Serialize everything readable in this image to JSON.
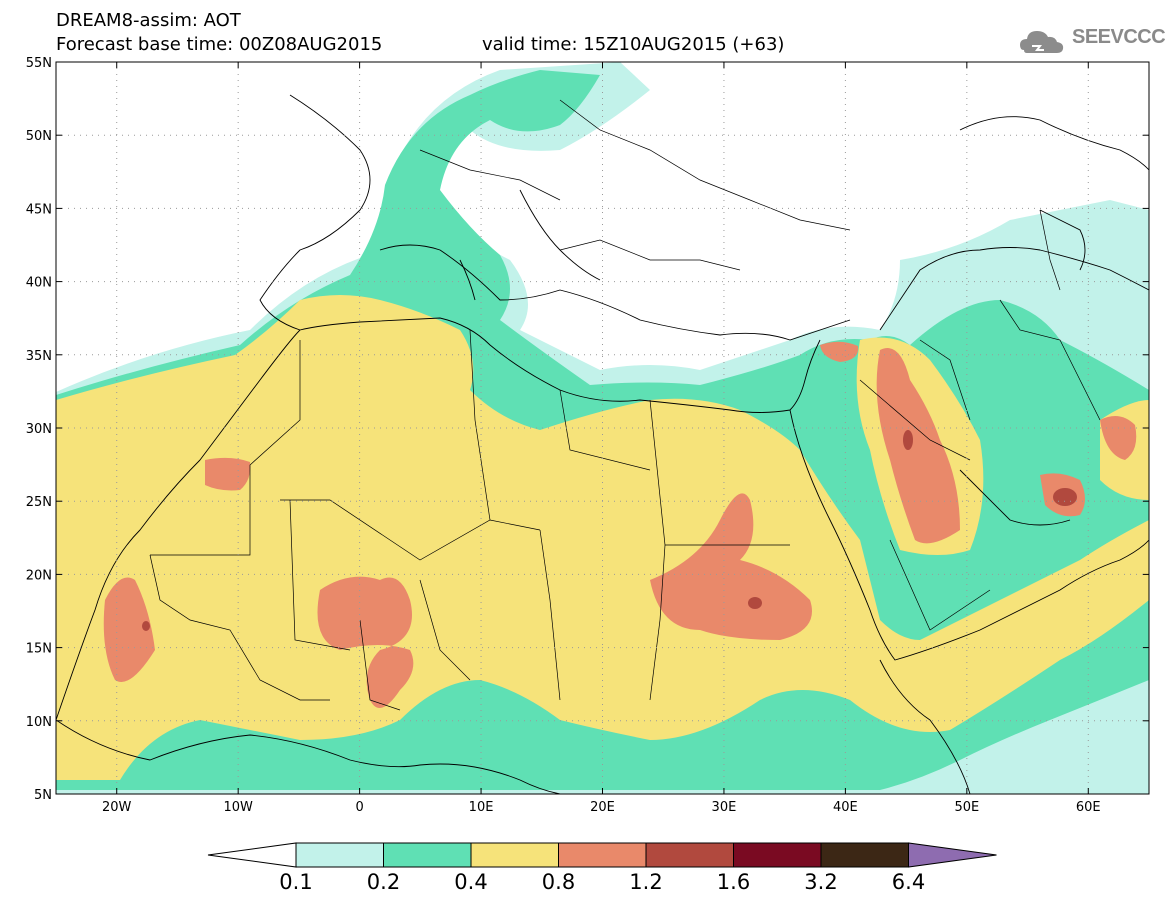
{
  "header": {
    "title_line1": "DREAM8-assim: AOT",
    "title_line2": "Forecast base time: 00Z08AUG2015",
    "valid_time": "valid time: 15Z10AUG2015 (+63)",
    "logo_text": "SEEVCCC"
  },
  "map": {
    "lon_range": [
      -25,
      65
    ],
    "lat_range": [
      5,
      55
    ],
    "x_ticks": [
      {
        "lon": -20,
        "label": "20W"
      },
      {
        "lon": -10,
        "label": "10W"
      },
      {
        "lon": 0,
        "label": "0"
      },
      {
        "lon": 10,
        "label": "10E"
      },
      {
        "lon": 20,
        "label": "20E"
      },
      {
        "lon": 30,
        "label": "30E"
      },
      {
        "lon": 40,
        "label": "40E"
      },
      {
        "lon": 50,
        "label": "50E"
      },
      {
        "lon": 60,
        "label": "60E"
      }
    ],
    "y_ticks": [
      {
        "lat": 55,
        "label": "55N"
      },
      {
        "lat": 50,
        "label": "50N"
      },
      {
        "lat": 45,
        "label": "45N"
      },
      {
        "lat": 40,
        "label": "40N"
      },
      {
        "lat": 35,
        "label": "35N"
      },
      {
        "lat": 30,
        "label": "30N"
      },
      {
        "lat": 25,
        "label": "25N"
      },
      {
        "lat": 20,
        "label": "20N"
      },
      {
        "lat": 15,
        "label": "15N"
      },
      {
        "lat": 10,
        "label": "10N"
      },
      {
        "lat": 5,
        "label": "5N"
      }
    ]
  },
  "colorbar": {
    "labels": [
      "0.1",
      "0.2",
      "0.4",
      "0.8",
      "1.2",
      "1.6",
      "3.2",
      "6.4"
    ],
    "colors": [
      "#c2f2ea",
      "#5fe0b4",
      "#f6e37a",
      "#e9896a",
      "#b1493e",
      "#7a0a22",
      "#3c2715",
      "#8e6cb0"
    ],
    "low_color": "#ffffff"
  }
}
